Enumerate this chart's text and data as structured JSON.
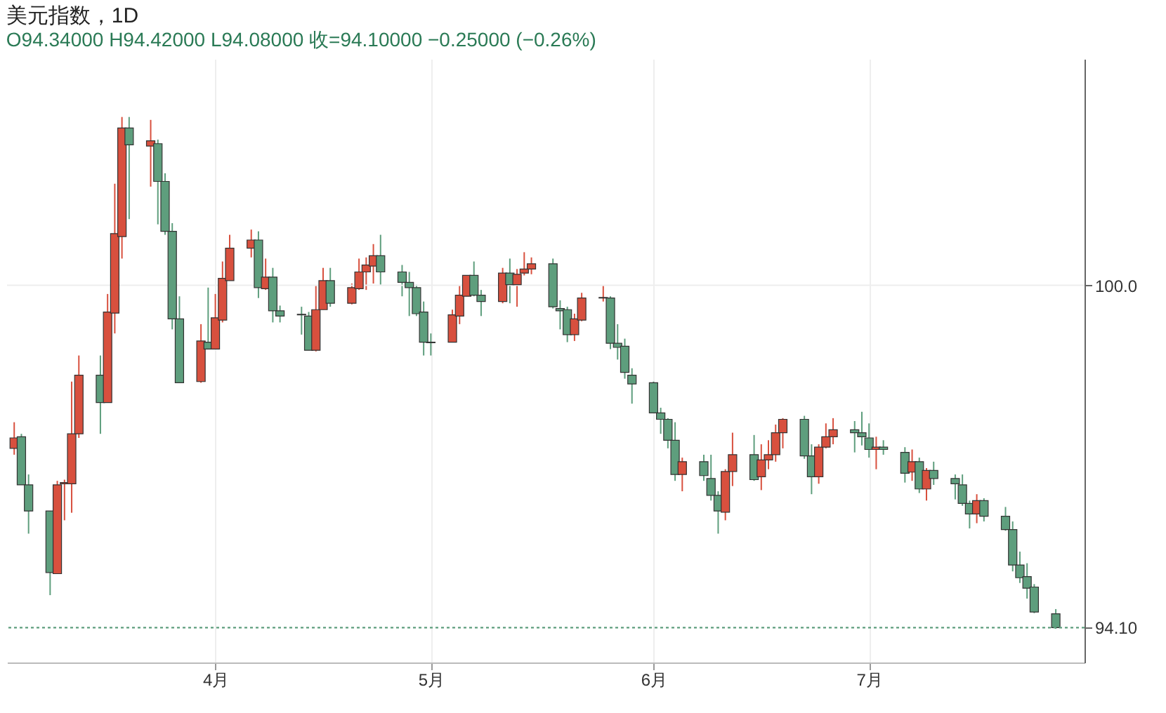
{
  "chart_data": {
    "type": "candlestick",
    "title": "美元指数，1D",
    "subtitle": "O94.34000  H94.42000  L94.08000  收=94.10000  −0.25000 (−0.26%)",
    "x": [
      "--03-04",
      "--03-05",
      "--03-06",
      "--03-09",
      "--03-10",
      "--03-11",
      "--03-12",
      "--03-13",
      "--03-16",
      "--03-17",
      "--03-18",
      "--03-19",
      "--03-20",
      "--03-23",
      "--03-24",
      "--03-25",
      "--03-26",
      "--03-27",
      "--03-30",
      "--03-31",
      "--04-01",
      "--04-02",
      "--04-03",
      "--04-06",
      "--04-07",
      "--04-08",
      "--04-09",
      "--04-10",
      "--04-13",
      "--04-14",
      "--04-15",
      "--04-16",
      "--04-17",
      "--04-20",
      "--04-21",
      "--04-22",
      "--04-23",
      "--04-24",
      "--04-27",
      "--04-28",
      "--04-29",
      "--04-30",
      "--05-01",
      "--05-04",
      "--05-05",
      "--05-06",
      "--05-07",
      "--05-08",
      "--05-11",
      "--05-12",
      "--05-13",
      "--05-14",
      "--05-15",
      "--05-18",
      "--05-19",
      "--05-20",
      "--05-21",
      "--05-22",
      "--05-25",
      "--05-26",
      "--05-27",
      "--05-28",
      "--05-29",
      "--06-01",
      "--06-02",
      "--06-03",
      "--06-04",
      "--06-05",
      "--06-08",
      "--06-09",
      "--06-10",
      "--06-11",
      "--06-12",
      "--06-15",
      "--06-16",
      "--06-17",
      "--06-18",
      "--06-19",
      "--06-22",
      "--06-23",
      "--06-24",
      "--06-25",
      "--06-26",
      "--06-29",
      "--06-30",
      "--07-01",
      "--07-02",
      "--07-03",
      "--07-06",
      "--07-07",
      "--07-08",
      "--07-09",
      "--07-10",
      "--07-13",
      "--07-14",
      "--07-15",
      "--07-16",
      "--07-17",
      "--07-20",
      "--07-21",
      "--07-22",
      "--07-23",
      "--07-24",
      "--07-27"
    ],
    "ohlc": [
      [
        97.19,
        97.64,
        97.08,
        97.37
      ],
      [
        97.39,
        97.44,
        96.56,
        96.56
      ],
      [
        96.56,
        96.74,
        95.72,
        96.11
      ],
      [
        96.11,
        96.11,
        94.66,
        95.05
      ],
      [
        95.03,
        96.63,
        95.03,
        96.56
      ],
      [
        96.58,
        96.65,
        95.95,
        96.6
      ],
      [
        96.58,
        98.34,
        96.08,
        97.44
      ],
      [
        97.44,
        98.79,
        97.37,
        98.45
      ],
      [
        98.45,
        98.79,
        97.44,
        97.98
      ],
      [
        97.98,
        99.85,
        97.98,
        99.54
      ],
      [
        99.52,
        101.75,
        99.17,
        100.89
      ],
      [
        100.84,
        102.9,
        100.46,
        102.71
      ],
      [
        102.71,
        102.9,
        101.14,
        102.42
      ],
      [
        102.4,
        102.85,
        101.7,
        102.49
      ],
      [
        102.44,
        102.51,
        101.05,
        101.79
      ],
      [
        101.79,
        101.93,
        100.87,
        100.93
      ],
      [
        100.93,
        101.07,
        99.24,
        99.42
      ],
      [
        99.42,
        99.81,
        98.32,
        98.32
      ],
      [
        98.34,
        99.33,
        98.32,
        99.04
      ],
      [
        99.02,
        99.96,
        98.9,
        98.9
      ],
      [
        98.9,
        99.85,
        98.9,
        99.44
      ],
      [
        99.4,
        100.41,
        99.36,
        100.12
      ],
      [
        100.08,
        100.87,
        100.08,
        100.64
      ],
      [
        100.64,
        100.96,
        100.48,
        100.78
      ],
      [
        100.78,
        100.93,
        99.78,
        99.96
      ],
      [
        99.94,
        100.46,
        99.92,
        100.14
      ],
      [
        100.14,
        100.3,
        99.36,
        99.56
      ],
      [
        99.56,
        99.65,
        99.36,
        99.47
      ],
      [
        99.5,
        99.63,
        99.15,
        99.49
      ],
      [
        99.47,
        99.54,
        98.88,
        98.88
      ],
      [
        98.88,
        99.99,
        98.86,
        99.58
      ],
      [
        99.58,
        100.3,
        99.58,
        100.08
      ],
      [
        100.08,
        100.3,
        99.63,
        99.69
      ],
      [
        99.69,
        100.03,
        99.67,
        99.96
      ],
      [
        99.94,
        100.46,
        99.92,
        100.23
      ],
      [
        100.23,
        100.48,
        99.92,
        100.35
      ],
      [
        100.33,
        100.71,
        100.03,
        100.51
      ],
      [
        100.51,
        100.87,
        100.01,
        100.23
      ],
      [
        100.23,
        100.35,
        99.81,
        100.05
      ],
      [
        100.05,
        100.23,
        99.47,
        99.96
      ],
      [
        99.96,
        100.01,
        99.47,
        99.51
      ],
      [
        99.54,
        99.72,
        98.79,
        99.02
      ],
      [
        99.02,
        99.17,
        98.79,
        99.01
      ],
      [
        99.02,
        99.58,
        99.02,
        99.49
      ],
      [
        99.47,
        99.99,
        99.33,
        99.83
      ],
      [
        99.81,
        100.17,
        99.81,
        100.17
      ],
      [
        100.17,
        100.41,
        99.81,
        99.83
      ],
      [
        99.83,
        99.92,
        99.47,
        99.72
      ],
      [
        99.72,
        100.3,
        99.69,
        100.21
      ],
      [
        100.21,
        100.46,
        99.69,
        100.01
      ],
      [
        100.01,
        100.28,
        99.63,
        100.19
      ],
      [
        100.21,
        100.57,
        100.17,
        100.28
      ],
      [
        100.28,
        100.48,
        100.19,
        100.37
      ],
      [
        100.37,
        100.46,
        99.6,
        99.63
      ],
      [
        99.6,
        99.74,
        99.24,
        99.56
      ],
      [
        99.58,
        99.63,
        99.02,
        99.15
      ],
      [
        99.15,
        99.51,
        99.04,
        99.42
      ],
      [
        99.4,
        99.87,
        99.38,
        99.78
      ],
      [
        99.78,
        99.99,
        99.72,
        99.79
      ],
      [
        99.78,
        99.81,
        98.9,
        99.0
      ],
      [
        99.0,
        99.33,
        98.72,
        98.93
      ],
      [
        98.95,
        99.08,
        98.39,
        98.5
      ],
      [
        98.45,
        98.57,
        97.96,
        98.3
      ],
      [
        98.32,
        98.34,
        97.8,
        97.8
      ],
      [
        97.8,
        97.89,
        97.44,
        97.69
      ],
      [
        97.69,
        97.71,
        97.19,
        97.33
      ],
      [
        97.33,
        97.64,
        96.63,
        96.74
      ],
      [
        96.74,
        97.03,
        96.45,
        96.96
      ],
      [
        96.96,
        97.08,
        96.63,
        96.72
      ],
      [
        96.67,
        97.08,
        96.29,
        96.38
      ],
      [
        96.38,
        96.45,
        95.72,
        96.11
      ],
      [
        96.09,
        96.83,
        95.95,
        96.79
      ],
      [
        96.79,
        97.46,
        96.54,
        97.08
      ],
      [
        97.08,
        97.42,
        96.63,
        96.65
      ],
      [
        96.7,
        97.26,
        96.47,
        96.99
      ],
      [
        96.99,
        97.33,
        96.83,
        97.08
      ],
      [
        97.08,
        97.6,
        96.96,
        97.46
      ],
      [
        97.46,
        97.71,
        97.19,
        97.69
      ],
      [
        97.69,
        97.75,
        97.01,
        97.06
      ],
      [
        97.06,
        97.26,
        96.4,
        96.7
      ],
      [
        96.7,
        97.26,
        96.58,
        97.21
      ],
      [
        97.21,
        97.62,
        97.19,
        97.39
      ],
      [
        97.39,
        97.71,
        97.26,
        97.51
      ],
      [
        97.51,
        97.66,
        97.12,
        97.46
      ],
      [
        97.46,
        97.82,
        97.24,
        97.39
      ],
      [
        97.37,
        97.62,
        97.03,
        97.17
      ],
      [
        97.17,
        97.39,
        96.83,
        97.21
      ],
      [
        97.21,
        97.33,
        97.08,
        97.17
      ],
      [
        97.12,
        97.21,
        96.6,
        96.76
      ],
      [
        96.78,
        97.17,
        96.63,
        96.96
      ],
      [
        96.96,
        97.03,
        96.42,
        96.49
      ],
      [
        96.49,
        96.85,
        96.29,
        96.81
      ],
      [
        96.81,
        96.96,
        96.56,
        96.67
      ],
      [
        96.67,
        96.74,
        96.31,
        96.58
      ],
      [
        96.56,
        96.74,
        96.2,
        96.24
      ],
      [
        96.24,
        96.29,
        95.81,
        96.06
      ],
      [
        96.06,
        96.4,
        95.9,
        96.29
      ],
      [
        96.29,
        96.33,
        95.93,
        96.02
      ],
      [
        96.02,
        96.18,
        95.77,
        95.79
      ],
      [
        95.79,
        95.93,
        95.07,
        95.18
      ],
      [
        95.18,
        95.41,
        94.87,
        94.96
      ],
      [
        94.98,
        95.21,
        94.6,
        94.78
      ],
      [
        94.8,
        94.85,
        94.35,
        94.37
      ],
      [
        94.34,
        94.42,
        94.08,
        94.1
      ]
    ],
    "colors": [
      "#d8503e",
      "#5e9e7d",
      "#5e9e7d",
      "#5e9e7d",
      "#d8503e",
      "#d8503e",
      "#d8503e",
      "#d8503e",
      "#5e9e7d",
      "#d8503e",
      "#d8503e",
      "#d8503e",
      "#5e9e7d",
      "#d8503e",
      "#5e9e7d",
      "#5e9e7d",
      "#5e9e7d",
      "#5e9e7d",
      "#d8503e",
      "#5e9e7d",
      "#d8503e",
      "#d8503e",
      "#d8503e",
      "#d8503e",
      "#5e9e7d",
      "#d8503e",
      "#5e9e7d",
      "#5e9e7d",
      "#5e9e7d",
      "#5e9e7d",
      "#d8503e",
      "#d8503e",
      "#5e9e7d",
      "#d8503e",
      "#d8503e",
      "#d8503e",
      "#d8503e",
      "#5e9e7d",
      "#5e9e7d",
      "#5e9e7d",
      "#5e9e7d",
      "#5e9e7d",
      "#5e9e7d",
      "#d8503e",
      "#d8503e",
      "#d8503e",
      "#5e9e7d",
      "#5e9e7d",
      "#d8503e",
      "#5e9e7d",
      "#d8503e",
      "#d8503e",
      "#d8503e",
      "#5e9e7d",
      "#5e9e7d",
      "#5e9e7d",
      "#d8503e",
      "#d8503e",
      "#d8503e",
      "#5e9e7d",
      "#5e9e7d",
      "#5e9e7d",
      "#5e9e7d",
      "#5e9e7d",
      "#5e9e7d",
      "#5e9e7d",
      "#5e9e7d",
      "#d8503e",
      "#5e9e7d",
      "#5e9e7d",
      "#5e9e7d",
      "#d8503e",
      "#d8503e",
      "#5e9e7d",
      "#d8503e",
      "#d8503e",
      "#d8503e",
      "#d8503e",
      "#5e9e7d",
      "#5e9e7d",
      "#d8503e",
      "#d8503e",
      "#d8503e",
      "#5e9e7d",
      "#5e9e7d",
      "#5e9e7d",
      "#d8503e",
      "#5e9e7d",
      "#5e9e7d",
      "#d8503e",
      "#5e9e7d",
      "#d8503e",
      "#5e9e7d",
      "#5e9e7d",
      "#5e9e7d",
      "#5e9e7d",
      "#d8503e",
      "#5e9e7d",
      "#5e9e7d",
      "#5e9e7d",
      "#5e9e7d",
      "#5e9e7d",
      "#5e9e7d",
      "#5e9e7d"
    ],
    "xlim": [
      "--03-03",
      "--07-31"
    ],
    "xticks": [
      {
        "value": "--04-01",
        "label": "4月"
      },
      {
        "value": "--05-01",
        "label": "5月"
      },
      {
        "value": "--06-01",
        "label": "6月"
      },
      {
        "value": "--07-01",
        "label": "7月"
      }
    ],
    "ylim": [
      93.5,
      103.9
    ],
    "yticks": [
      {
        "value": 100,
        "label": "100.0"
      },
      {
        "value": 94.1,
        "label": "94.10"
      }
    ],
    "ref_lines": [
      {
        "axis": "y",
        "value": 94.1,
        "color": "#5e9e7d",
        "line_style": "dotted"
      }
    ],
    "grid": true
  }
}
